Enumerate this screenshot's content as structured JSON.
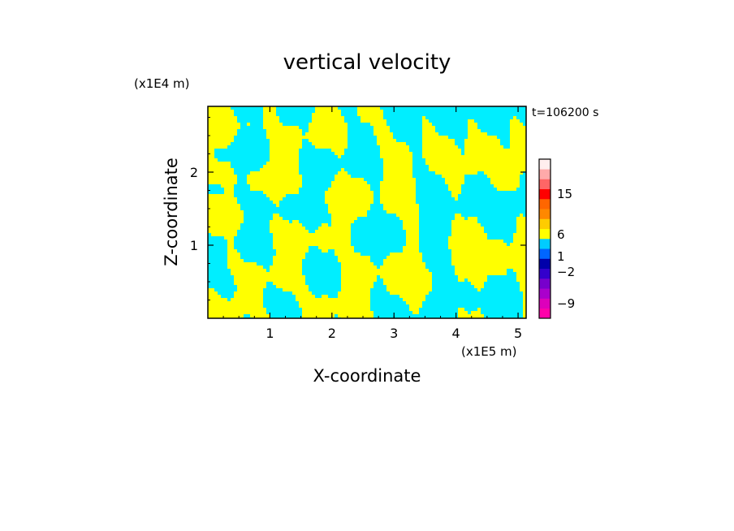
{
  "chart_data": {
    "type": "heatmap",
    "title": "vertical velocity",
    "xlabel": "X-coordinate",
    "ylabel": "Z-coordinate",
    "x_unit": "(x1E5 m)",
    "y_unit": "(x1E4 m)",
    "time_label": "t=106200 s",
    "xlim": [
      0,
      5.13
    ],
    "ylim": [
      0,
      2.9
    ],
    "x_ticks": [
      1,
      2,
      3,
      4,
      5
    ],
    "y_ticks": [
      1,
      2
    ],
    "field_colors": {
      "positive": "#ffff00",
      "negative": "#00eeff"
    },
    "colorbar": {
      "labels": [
        {
          "text": "15",
          "value": 15
        },
        {
          "text": "6",
          "value": 6
        },
        {
          "text": "1",
          "value": 1
        },
        {
          "text": "−2",
          "value": -2
        },
        {
          "text": "−9",
          "value": -9
        }
      ],
      "bands": [
        {
          "color": "#ff00aa"
        },
        {
          "color": "#dd00bb"
        },
        {
          "color": "#aa00cc"
        },
        {
          "color": "#7700cc"
        },
        {
          "color": "#3300cc"
        },
        {
          "color": "#0000aa"
        },
        {
          "color": "#0066ff"
        },
        {
          "color": "#00ccff"
        },
        {
          "color": "#ffff00"
        },
        {
          "color": "#ffcc00"
        },
        {
          "color": "#ff8800"
        },
        {
          "color": "#ff6600"
        },
        {
          "color": "#ff0000"
        },
        {
          "color": "#ff6666"
        },
        {
          "color": "#ffaaaa"
        },
        {
          "color": "#ffeeee"
        }
      ]
    }
  }
}
